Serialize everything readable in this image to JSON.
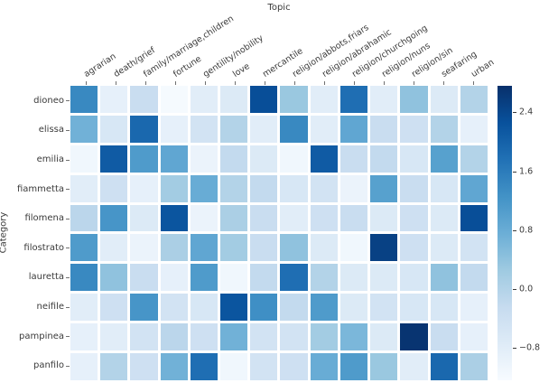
{
  "chart_data": {
    "type": "heatmap",
    "xlabel": "Topic",
    "ylabel": "Category",
    "columns": [
      "agrarian",
      "death/grief",
      "family/marriage,children",
      "fortune",
      "gentility/nobility",
      "love",
      "mercantile",
      "religion/abbots,friars",
      "religion/abrahamic",
      "religion/churchgoing",
      "religion/nuns",
      "religion/sin",
      "seafaring",
      "urban"
    ],
    "rows": [
      "dioneo",
      "elissa",
      "emilia",
      "fiammetta",
      "filomena",
      "filostrato",
      "lauretta",
      "neifile",
      "pampinea",
      "panfilo"
    ],
    "values": [
      [
        1.4,
        -0.9,
        -0.3,
        -1.2,
        -0.8,
        -0.7,
        2.3,
        0.3,
        -0.8,
        1.8,
        -0.8,
        0.4,
        -0.7,
        0.0
      ],
      [
        0.7,
        -0.6,
        1.9,
        -0.9,
        -0.5,
        0.0,
        -0.8,
        1.4,
        -0.8,
        0.9,
        -0.3,
        -0.4,
        0.0,
        -0.9
      ],
      [
        -1.1,
        2.1,
        1.1,
        0.9,
        -1.0,
        -0.2,
        -0.7,
        -1.1,
        2.1,
        -0.3,
        -0.2,
        -0.6,
        1.0,
        0.0
      ],
      [
        -0.8,
        -0.4,
        -0.9,
        0.2,
        0.8,
        0.0,
        -0.2,
        -0.6,
        -0.5,
        -1.0,
        1.0,
        -0.3,
        -0.6,
        0.9
      ],
      [
        -0.1,
        1.2,
        -0.7,
        2.2,
        -1.0,
        0.1,
        -0.3,
        -0.8,
        -0.4,
        -0.3,
        -0.7,
        -0.4,
        -0.7,
        2.3
      ],
      [
        1.1,
        -0.8,
        -1.0,
        0.1,
        0.9,
        0.2,
        -0.3,
        0.4,
        -0.7,
        -1.1,
        2.5,
        -0.4,
        -0.7,
        -0.5
      ],
      [
        1.4,
        0.4,
        -0.3,
        -0.9,
        1.1,
        -1.1,
        -0.2,
        1.8,
        0.0,
        -0.7,
        -0.7,
        -0.6,
        0.4,
        -0.2
      ],
      [
        -0.8,
        -0.4,
        1.2,
        -0.5,
        -0.6,
        2.2,
        1.3,
        -0.2,
        1.1,
        -0.7,
        -0.5,
        -0.6,
        -0.6,
        -0.9
      ],
      [
        -0.9,
        -0.8,
        -0.5,
        -0.1,
        -0.4,
        0.7,
        -0.5,
        -0.5,
        0.2,
        0.6,
        -0.7,
        2.7,
        -0.3,
        -0.9
      ],
      [
        -0.9,
        0.0,
        -0.4,
        0.7,
        1.8,
        -1.1,
        -0.5,
        -0.4,
        0.8,
        1.1,
        0.3,
        -0.8,
        1.9,
        0.1
      ]
    ],
    "colormap": "Blues",
    "vmin": -1.24,
    "vmax": 2.76,
    "legend_position": "right",
    "colorbar": {
      "tick_labels": [
        "2.4",
        "1.6",
        "0.8",
        "0.0",
        "−0.8"
      ],
      "tick_values": [
        2.4,
        1.6,
        0.8,
        0.0,
        -0.8
      ]
    },
    "colors": {
      "text": "#3a3a3a",
      "tick": "#707070",
      "background": "#ffffff",
      "cmap_low": "#f7fbff",
      "cmap_high": "#08306b"
    }
  }
}
